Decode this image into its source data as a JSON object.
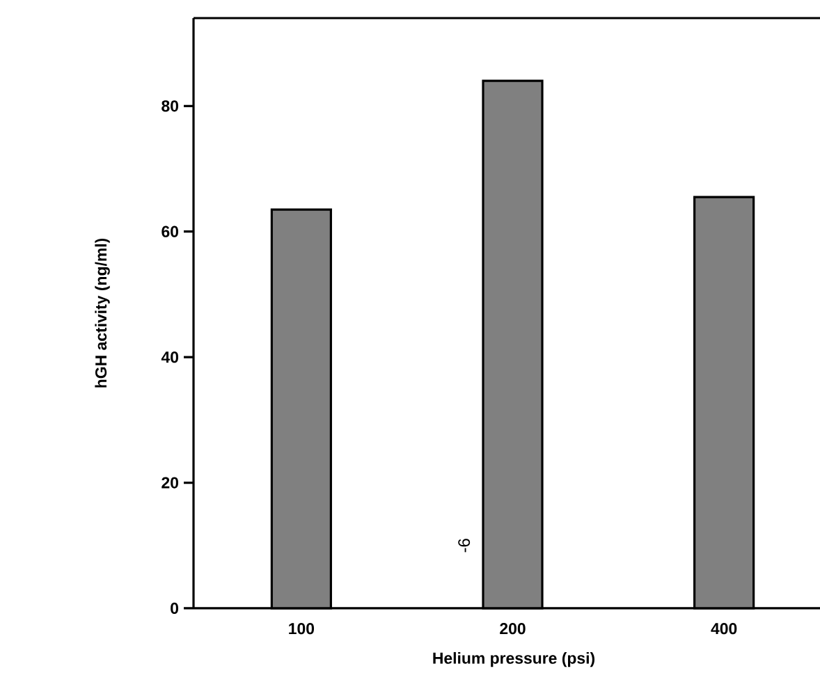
{
  "chart_data": {
    "type": "bar",
    "xlabel": "Helium pressure (psi)",
    "ylabel": "hGH activity (ng/ml)",
    "categories": [
      "100",
      "200",
      "400"
    ],
    "values": [
      63.5,
      84,
      65.5
    ],
    "color": "#808080",
    "ylim": [
      0,
      94
    ],
    "yticks": [
      0,
      20,
      40,
      60,
      80
    ],
    "annotations": [
      "-6"
    ]
  }
}
